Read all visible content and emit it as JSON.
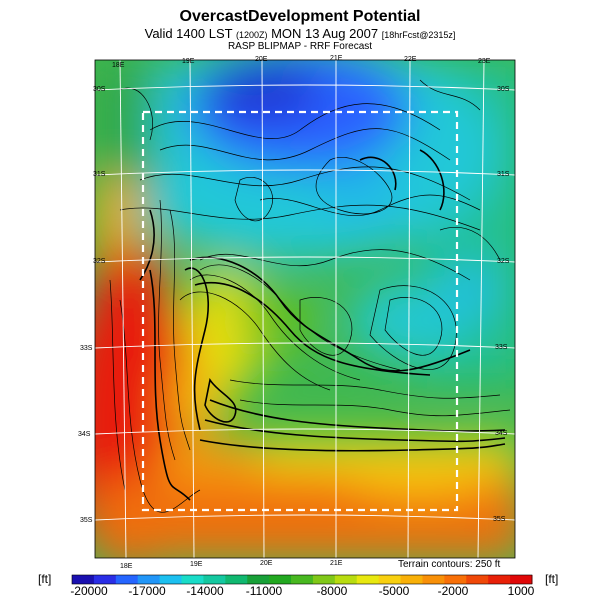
{
  "header": {
    "title": "OvercastDevelopment Potential",
    "subtitle_main": "Valid 1400 LST",
    "subtitle_paren": "(1200Z)",
    "subtitle_date": "MON 13 Aug 2007",
    "subtitle_fcst": "[18hrFcst@2315z]",
    "source": "RASP BLIPMAP - RRF Forecast"
  },
  "lon_labels_top": [
    "18E",
    "19E",
    "20E",
    "21E",
    "22E",
    "23E"
  ],
  "lon_labels_bottom": [
    "18E",
    "19E",
    "20E",
    "21E"
  ],
  "lat_labels_right": [
    "30S",
    "31S",
    "32S",
    "33S",
    "34S",
    "35S"
  ],
  "lat_labels_left": [
    "30S",
    "31S",
    "32S",
    "33S",
    "34S",
    "35S"
  ],
  "terrain_note": "Terrain contours: 250 ft",
  "colorbar": {
    "unit_left": "[ft]",
    "unit_right": "[ft]",
    "tick_labels": [
      "-20000",
      "-17000",
      "-14000",
      "-11000",
      "-8000",
      "-5000",
      "-2000",
      "1000"
    ],
    "colors": [
      "#1a10b0",
      "#2a2ee6",
      "#2565ff",
      "#2196f8",
      "#1cc0f0",
      "#19dcc8",
      "#14c8a0",
      "#10b870",
      "#18a038",
      "#22a820",
      "#48b820",
      "#80c818",
      "#b8dc10",
      "#e8e810",
      "#f8d010",
      "#f8b008",
      "#f89008",
      "#f87008",
      "#f04808",
      "#e82008",
      "#e00808"
    ]
  }
}
